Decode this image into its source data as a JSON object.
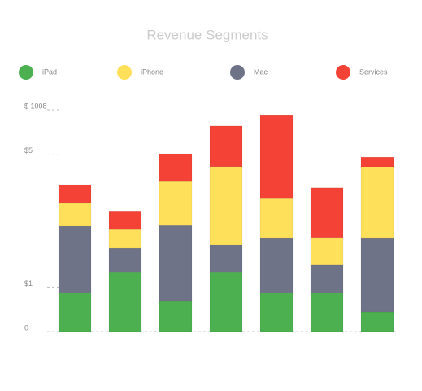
{
  "chart_data": {
    "type": "stacked_bar",
    "title": "Revenue Segments",
    "categories": [
      null,
      null,
      null,
      null,
      null,
      null,
      null
    ],
    "series": [
      {
        "name": "iPad",
        "color": "#4caf50",
        "values": [
          17.6,
          26.7,
          13.9,
          26.7,
          17.6,
          17.6,
          8.8
        ]
      },
      {
        "name": "iPhone",
        "color": "#ffe05a",
        "values": [
          10.3,
          8.4,
          19.8,
          35.2,
          17.9,
          12.1,
          32.2
        ]
      },
      {
        "name": "Mac",
        "color": "#6e7387",
        "values": [
          30,
          11,
          34,
          12.5,
          24.5,
          12.5,
          33.3
        ]
      },
      {
        "name": "Services",
        "color": "#f44336",
        "values": [
          8.4,
          8,
          12.5,
          18.3,
          37.4,
          22.7,
          4.4
        ]
      }
    ],
    "stack_order": [
      "iPad",
      "Mac",
      "iPhone",
      "Services"
    ],
    "ylim": [
      0,
      100
    ],
    "yticks": [
      0,
      {
        "value": 20,
        "label": "$1"
      },
      {
        "value": 80,
        "label": "$5"
      },
      {
        "value": 100,
        "label": "$ 1008"
      }
    ],
    "legend": "top"
  }
}
